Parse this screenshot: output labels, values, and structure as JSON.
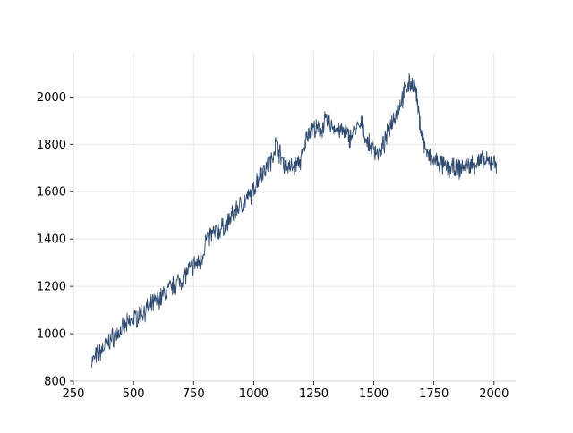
{
  "chart_data": {
    "type": "line",
    "title": "",
    "xlabel": "",
    "ylabel": "",
    "xlim": [
      250,
      2090
    ],
    "ylim": [
      800,
      2190
    ],
    "grid": true,
    "x_ticks": [
      250,
      500,
      750,
      1000,
      1250,
      1500,
      1750,
      2000
    ],
    "y_ticks": [
      800,
      1000,
      1200,
      1400,
      1600,
      1800,
      2000
    ],
    "x_tick_labels": [
      "250",
      "500",
      "750",
      "1000",
      "1250",
      "1500",
      "1750",
      "2000"
    ],
    "y_tick_labels": [
      "800",
      "1000",
      "1200",
      "1400",
      "1600",
      "1800",
      "2000"
    ],
    "line_color": "#2e4a70",
    "grid_color": "#e6e6e6",
    "axis_color": "#cccccc",
    "series": [
      {
        "x": [
          325,
          350,
          375,
          400,
          425,
          450,
          475,
          500,
          525,
          550,
          575,
          600,
          625,
          650,
          675,
          700,
          725,
          750,
          775,
          790,
          800,
          825,
          850,
          875,
          900,
          925,
          950,
          975,
          1000,
          1010,
          1030,
          1050,
          1075,
          1090,
          1110,
          1125,
          1150,
          1175,
          1200,
          1225,
          1240,
          1260,
          1280,
          1300,
          1325,
          1350,
          1375,
          1400,
          1425,
          1450,
          1475,
          1500,
          1525,
          1550,
          1575,
          1600,
          1625,
          1640,
          1660,
          1675,
          1690,
          1710,
          1725,
          1750,
          1775,
          1800,
          1825,
          1850,
          1875,
          1900,
          1925,
          1950,
          1975,
          2000,
          2010
        ],
        "y": [
          880,
          910,
          940,
          970,
          995,
          1015,
          1040,
          1060,
          1080,
          1100,
          1120,
          1140,
          1165,
          1190,
          1210,
          1230,
          1260,
          1290,
          1300,
          1340,
          1390,
          1420,
          1430,
          1450,
          1480,
          1520,
          1550,
          1570,
          1600,
          1640,
          1680,
          1700,
          1730,
          1800,
          1760,
          1720,
          1700,
          1710,
          1740,
          1850,
          1870,
          1860,
          1860,
          1900,
          1880,
          1860,
          1850,
          1830,
          1860,
          1880,
          1800,
          1780,
          1760,
          1820,
          1900,
          1950,
          2010,
          2050,
          2060,
          2020,
          1900,
          1800,
          1750,
          1730,
          1720,
          1700,
          1700,
          1690,
          1710,
          1710,
          1720,
          1730,
          1720,
          1730,
          1720
        ]
      }
    ]
  }
}
